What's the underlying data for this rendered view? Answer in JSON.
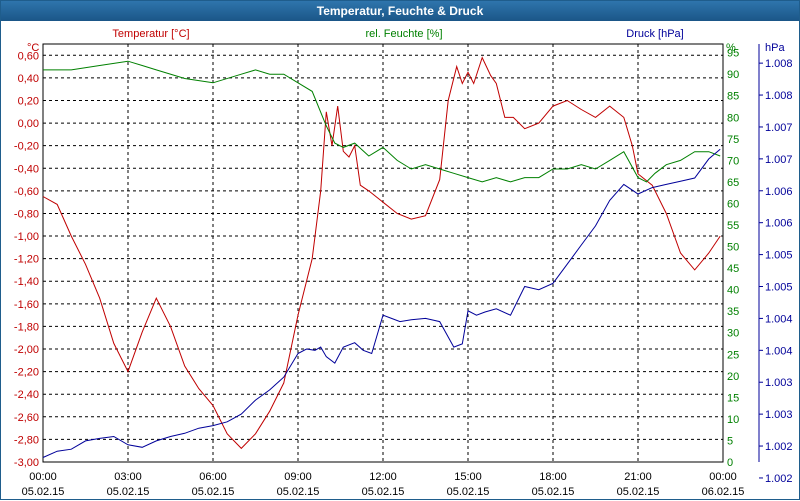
{
  "title": "Temperatur, Feuchte & Druck",
  "colors": {
    "temperature": "#c00000",
    "humidity": "#008000",
    "pressure": "#000099",
    "grid": "#000000",
    "title_bar": "#1f5d8c"
  },
  "chart_data": {
    "type": "line",
    "title": "Temperatur, Feuchte & Druck",
    "grid": true,
    "x_axis": {
      "range": [
        "05.02.15 00:00",
        "06.02.15 00:00"
      ],
      "tick_times": [
        "00:00",
        "03:00",
        "06:00",
        "09:00",
        "12:00",
        "15:00",
        "18:00",
        "21:00",
        "00:00"
      ],
      "tick_dates": [
        "05.02.15",
        "05.02.15",
        "05.02.15",
        "05.02.15",
        "05.02.15",
        "05.02.15",
        "05.02.15",
        "05.02.15",
        "06.02.15"
      ]
    },
    "y_left": {
      "label": "Temperatur [°C]",
      "unit": "°C",
      "range": [
        -3.0,
        0.7
      ],
      "tick_labels": [
        "0,60",
        "0,40",
        "0,20",
        "0,00",
        "-0,20",
        "-0,40",
        "-0,60",
        "-0,80",
        "-1,00",
        "-1,20",
        "-1,40",
        "-1,60",
        "-1,80",
        "-2,00",
        "-2,20",
        "-2,40",
        "-2,60",
        "-2,80",
        "-3,00"
      ]
    },
    "y_mid": {
      "label": "rel. Feuchte [%]",
      "unit": "%",
      "range": [
        0,
        97
      ],
      "tick_labels": [
        "95",
        "90",
        "85",
        "80",
        "75",
        "70",
        "65",
        "60",
        "55",
        "50",
        "45",
        "40",
        "35",
        "30",
        "25",
        "20",
        "15",
        "10",
        "5",
        "0"
      ]
    },
    "y_right": {
      "label": "Druck [hPa]",
      "unit": "hPa",
      "range": [
        1001.75,
        1008.3
      ],
      "tick_labels": [
        "1.008",
        "1.008",
        "1.007",
        "1.007",
        "1.006",
        "1.006",
        "1.005",
        "1.005",
        "1.004",
        "1.004",
        "1.003",
        "1.003",
        "1.002",
        "1.002"
      ]
    },
    "series": [
      {
        "name": "Temperatur [°C]",
        "axis": "left",
        "x_hours": [
          0,
          0.5,
          1,
          1.5,
          2,
          2.5,
          3,
          3.5,
          4,
          4.5,
          5,
          5.5,
          6,
          6.5,
          7,
          7.5,
          8,
          8.5,
          9,
          9.5,
          9.8,
          10,
          10.2,
          10.4,
          10.6,
          10.8,
          11,
          11.2,
          11.5,
          12,
          12.5,
          13,
          13.5,
          14,
          14.3,
          14.6,
          14.8,
          15,
          15.2,
          15.5,
          15.8,
          16,
          16.3,
          16.6,
          17,
          17.5,
          18,
          18.5,
          19,
          19.5,
          20,
          20.5,
          20.8,
          21,
          21.5,
          22,
          22.5,
          23,
          23.5,
          23.9
        ],
        "values": [
          -0.65,
          -0.72,
          -1.0,
          -1.25,
          -1.55,
          -1.95,
          -2.2,
          -1.85,
          -1.55,
          -1.8,
          -2.15,
          -2.35,
          -2.5,
          -2.75,
          -2.88,
          -2.75,
          -2.55,
          -2.3,
          -1.7,
          -1.2,
          -0.6,
          0.1,
          -0.2,
          0.15,
          -0.25,
          -0.3,
          -0.2,
          -0.55,
          -0.6,
          -0.7,
          -0.8,
          -0.85,
          -0.82,
          -0.5,
          0.2,
          0.5,
          0.35,
          0.45,
          0.35,
          0.58,
          0.42,
          0.35,
          0.05,
          0.05,
          -0.05,
          0.0,
          0.15,
          0.2,
          0.12,
          0.05,
          0.15,
          0.05,
          -0.2,
          -0.45,
          -0.55,
          -0.8,
          -1.15,
          -1.3,
          -1.15,
          -1.0
        ]
      },
      {
        "name": "rel. Feuchte [%]",
        "axis": "mid",
        "x_hours": [
          0,
          1,
          2,
          3,
          3.5,
          4,
          5,
          6,
          7,
          7.5,
          8,
          8.5,
          9,
          9.5,
          10,
          10.3,
          10.6,
          11,
          11.5,
          12,
          12.5,
          13,
          13.5,
          14,
          14.5,
          15,
          15.5,
          16,
          16.5,
          17,
          17.5,
          18,
          18.5,
          19,
          19.5,
          20,
          20.5,
          21,
          21.3,
          21.6,
          22,
          22.5,
          23,
          23.5,
          23.9
        ],
        "values": [
          91,
          91,
          92,
          93,
          92,
          91,
          89,
          88,
          90,
          91,
          90,
          90,
          88,
          86,
          78,
          74,
          73,
          74,
          71,
          73,
          70,
          68,
          69,
          68,
          67,
          66,
          65,
          66,
          65,
          66,
          66,
          68,
          68,
          69,
          68,
          70,
          72,
          66,
          65,
          67,
          69,
          70,
          72,
          72,
          71
        ]
      },
      {
        "name": "Druck [hPa]",
        "axis": "right",
        "x_hours": [
          0,
          0.5,
          1,
          1.5,
          2,
          2.5,
          3,
          3.5,
          4,
          4.5,
          5,
          5.5,
          6,
          6.5,
          7,
          7.5,
          8,
          8.5,
          9,
          9.3,
          9.6,
          9.8,
          10,
          10.3,
          10.6,
          11,
          11.3,
          11.6,
          12,
          12.3,
          12.6,
          13,
          13.5,
          14,
          14.5,
          14.8,
          15,
          15.3,
          15.6,
          16,
          16.5,
          17,
          17.5,
          18,
          18.5,
          19,
          19.5,
          20,
          20.5,
          21,
          21.5,
          22,
          22.5,
          23,
          23.5,
          23.9
        ],
        "values": [
          1001.82,
          1001.92,
          1001.95,
          1002.08,
          1002.12,
          1002.15,
          1002.02,
          1001.98,
          1002.08,
          1002.15,
          1002.2,
          1002.28,
          1002.32,
          1002.38,
          1002.5,
          1002.72,
          1002.88,
          1003.08,
          1003.45,
          1003.52,
          1003.5,
          1003.55,
          1003.4,
          1003.3,
          1003.55,
          1003.62,
          1003.5,
          1003.45,
          1004.05,
          1004.0,
          1003.95,
          1003.98,
          1004.0,
          1003.95,
          1003.55,
          1003.6,
          1004.12,
          1004.05,
          1004.1,
          1004.15,
          1004.05,
          1004.5,
          1004.45,
          1004.55,
          1004.85,
          1005.15,
          1005.45,
          1005.85,
          1006.1,
          1005.95,
          1006.05,
          1006.1,
          1006.15,
          1006.2,
          1006.5,
          1006.65
        ]
      }
    ]
  }
}
